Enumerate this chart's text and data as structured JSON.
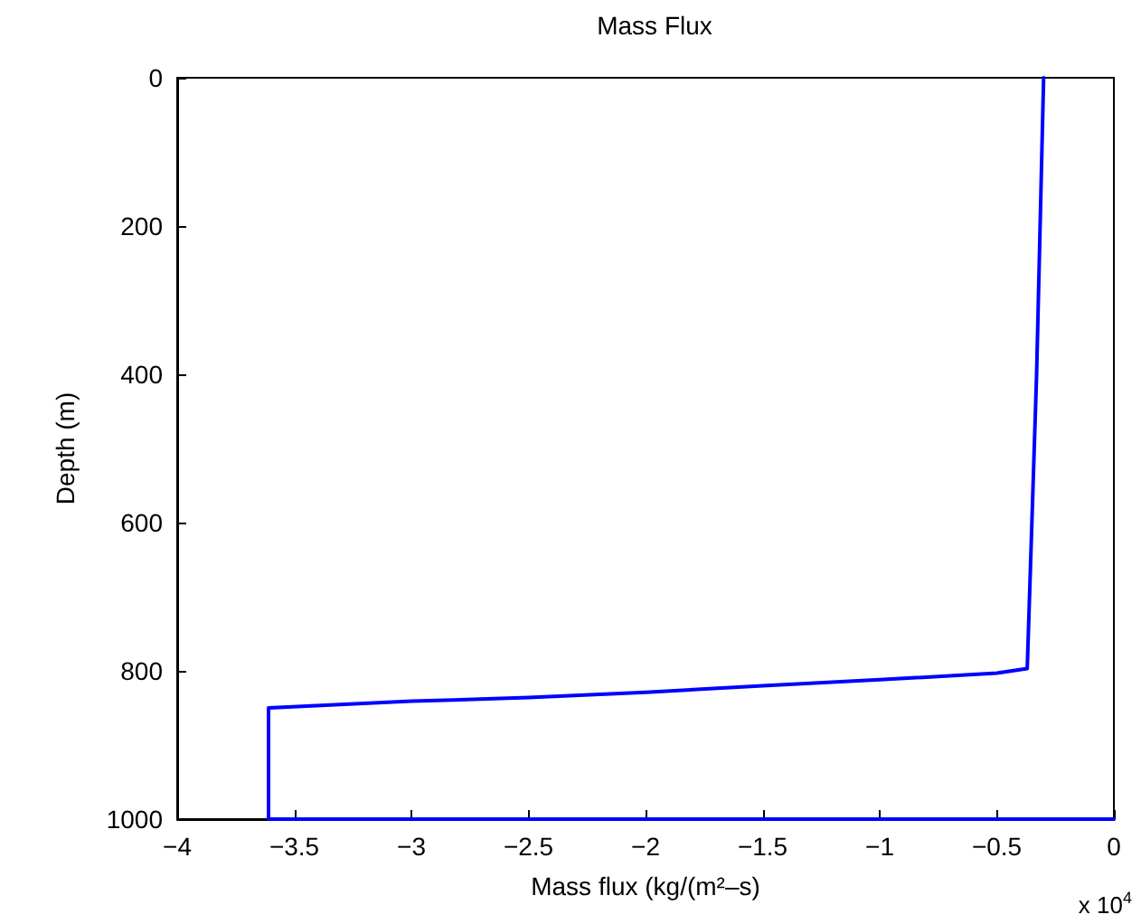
{
  "chart_data": {
    "type": "line",
    "title": "Mass Flux",
    "xlabel": "Mass flux (kg/(m²–s)",
    "ylabel": "Depth (m)",
    "annotations": [
      "x 10$^{4}$"
    ],
    "x": [
      -0.3,
      -0.33,
      -0.37,
      -0.5,
      -1,
      -1.5,
      -2,
      -2.5,
      -3,
      -3.61,
      -3.61,
      0
    ],
    "series": [
      {
        "color": "#0000ff",
        "values": [
          0,
          400,
          797,
          803,
          812,
          820,
          829,
          836,
          841,
          850,
          1000,
          1000
        ]
      }
    ],
    "xlim": [
      -4,
      0
    ],
    "xticks": [
      -4,
      -3.5,
      -3,
      -2.5,
      -2,
      -1.5,
      -1,
      -0.5,
      0
    ],
    "ylim": [
      1000,
      0
    ],
    "yticks": [
      0,
      200,
      400,
      600,
      800,
      1000
    ],
    "grid": false,
    "marker": "none",
    "line_style": "solid"
  }
}
